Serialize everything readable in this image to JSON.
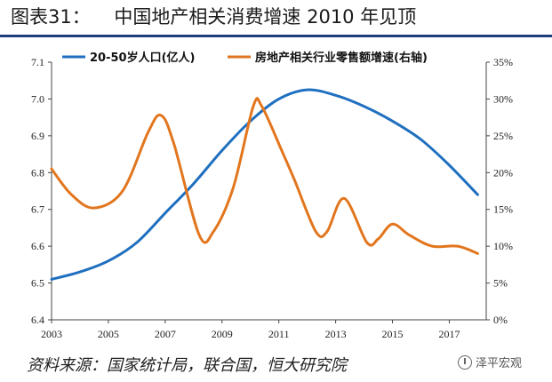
{
  "header": {
    "title": "图表31：    中国地产相关消费增速 2010 年见顶"
  },
  "footer": {
    "source": "资料来源：国家统计局，联合国，恒大研究院",
    "watermark": "泽平宏观"
  },
  "chart_data": {
    "type": "line",
    "x": [
      2003,
      2004,
      2005,
      2006,
      2007,
      2008,
      2009,
      2010,
      2011,
      2012,
      2013,
      2014,
      2015,
      2016,
      2017,
      2018
    ],
    "x_ticks": [
      "2003",
      "2005",
      "2007",
      "2009",
      "2011",
      "2013",
      "2015",
      "2017"
    ],
    "y_left_ticks": [
      "6.4",
      "6.5",
      "6.6",
      "6.7",
      "6.8",
      "6.9",
      "7.0",
      "7.1"
    ],
    "y_right_ticks": [
      "0%",
      "5%",
      "10%",
      "15%",
      "20%",
      "25%",
      "30%",
      "35%"
    ],
    "ylim_left": [
      6.4,
      7.1
    ],
    "ylim_right": [
      0,
      35
    ],
    "series": [
      {
        "name": "20-50岁人口(亿人)",
        "axis": "left",
        "color": "#1f6fbf",
        "x": [
          2003,
          2004,
          2005,
          2006,
          2007,
          2008,
          2009,
          2010,
          2011,
          2012,
          2013,
          2014,
          2015,
          2016,
          2017,
          2018
        ],
        "values": [
          6.51,
          6.53,
          6.56,
          6.61,
          6.69,
          6.77,
          6.86,
          6.94,
          7.0,
          7.025,
          7.01,
          6.98,
          6.94,
          6.89,
          6.82,
          6.74
        ]
      },
      {
        "name": "房地产相关行业零售额增速(右轴)",
        "axis": "right",
        "color": "#e2761e",
        "x": [
          2003,
          2003.7,
          2004.5,
          2005.5,
          2006.4,
          2006.85,
          2007.3,
          2008.2,
          2008.7,
          2009.4,
          2010.1,
          2010.4,
          2011.1,
          2011.55,
          2012.3,
          2012.7,
          2013.3,
          2014.1,
          2014.5,
          2015.0,
          2015.6,
          2016.4,
          2017.3,
          2018.0
        ],
        "values": [
          20.5,
          17,
          15.2,
          17.5,
          25.5,
          27.8,
          24,
          11.5,
          12,
          18,
          29,
          29,
          23,
          19,
          12,
          12,
          16.5,
          10.5,
          11,
          13,
          11.5,
          10,
          10,
          9
        ]
      }
    ],
    "legend_position": "top"
  }
}
